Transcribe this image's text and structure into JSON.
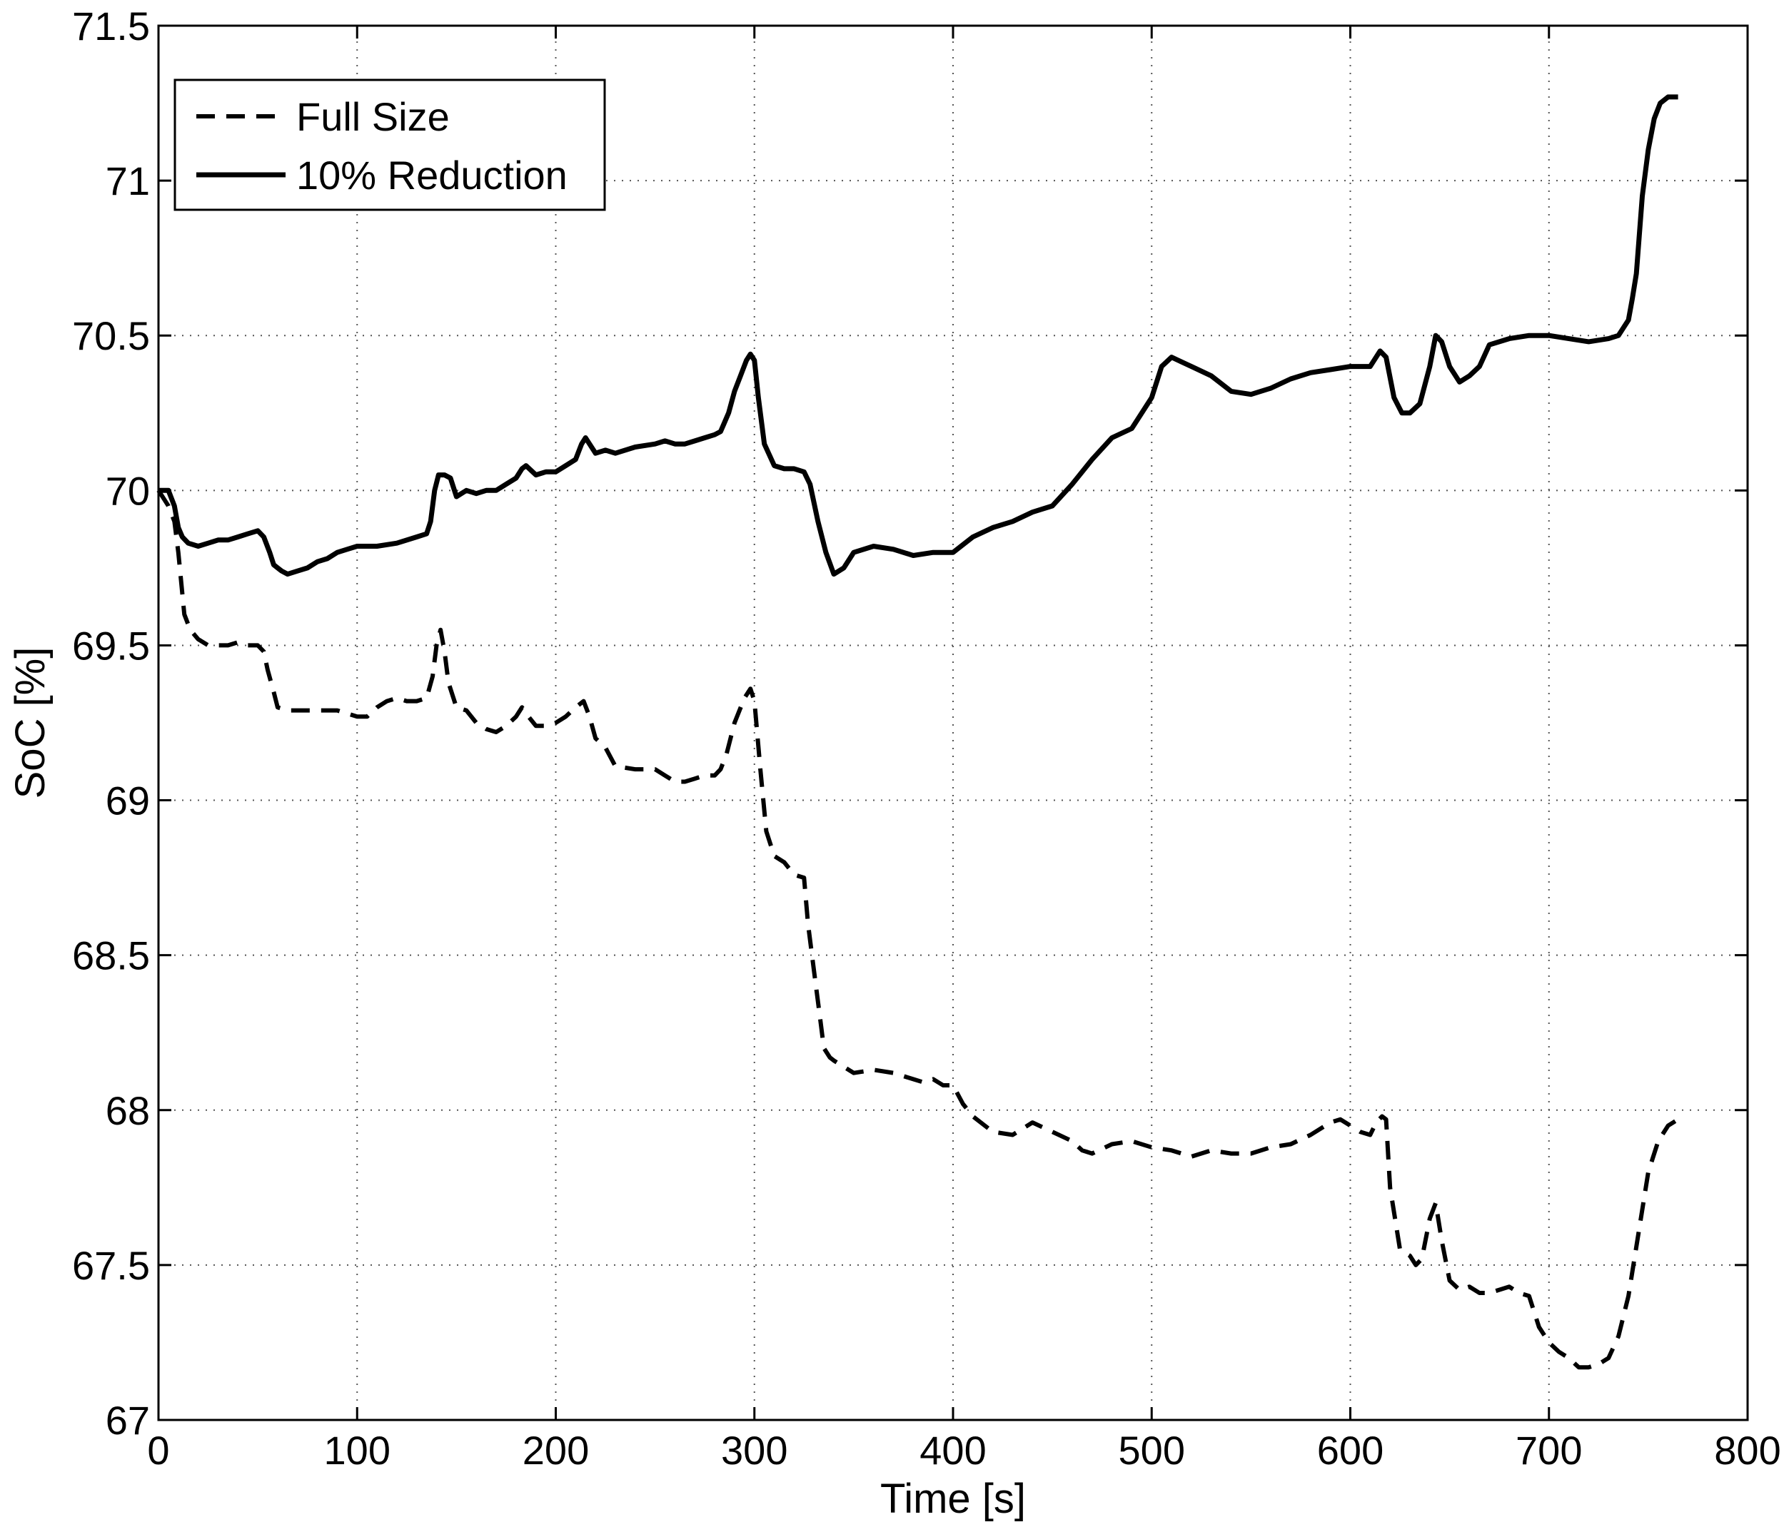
{
  "chart_data": {
    "type": "line",
    "xlabel": "Time [s]",
    "ylabel": "SoC [%]",
    "xlim": [
      0,
      800
    ],
    "ylim": [
      67,
      71.5
    ],
    "xticks": [
      0,
      100,
      200,
      300,
      400,
      500,
      600,
      700,
      800
    ],
    "yticks": [
      67,
      67.5,
      68,
      68.5,
      69,
      69.5,
      70,
      70.5,
      71,
      71.5
    ],
    "xtick_labels": [
      "0",
      "100",
      "200",
      "300",
      "400",
      "500",
      "600",
      "700",
      "800"
    ],
    "ytick_labels": [
      "67",
      "67.5",
      "68",
      "68.5",
      "69",
      "69.5",
      "70",
      "70.5",
      "71",
      "71.5"
    ],
    "grid": true,
    "legend_position": "top-left",
    "series": [
      {
        "name": "Full Size",
        "style": "dashed",
        "color": "#000000",
        "x": [
          0,
          5,
          8,
          10,
          13,
          16,
          20,
          25,
          30,
          35,
          40,
          45,
          50,
          53,
          55,
          58,
          60,
          65,
          70,
          80,
          90,
          100,
          105,
          110,
          115,
          120,
          125,
          130,
          135,
          138,
          140,
          142,
          144,
          146,
          150,
          155,
          160,
          165,
          170,
          175,
          180,
          183,
          185,
          190,
          195,
          200,
          205,
          210,
          214,
          217,
          220,
          225,
          230,
          240,
          250,
          255,
          260,
          265,
          270,
          275,
          280,
          283,
          286,
          290,
          295,
          298,
          300,
          303,
          306,
          310,
          315,
          320,
          325,
          327,
          330,
          333,
          335,
          338,
          340,
          345,
          350,
          360,
          370,
          380,
          385,
          390,
          395,
          400,
          405,
          410,
          420,
          430,
          440,
          450,
          460,
          465,
          470,
          480,
          490,
          500,
          510,
          520,
          530,
          540,
          550,
          560,
          570,
          580,
          590,
          595,
          600,
          605,
          610,
          613,
          616,
          618,
          620,
          625,
          630,
          633,
          636,
          640,
          643,
          646,
          650,
          655,
          660,
          665,
          670,
          675,
          680,
          685,
          690,
          695,
          700,
          705,
          710,
          715,
          720,
          725,
          730,
          735,
          740,
          745,
          750,
          755,
          760,
          765
        ],
        "y": [
          70.0,
          69.95,
          69.9,
          69.8,
          69.6,
          69.55,
          69.52,
          69.5,
          69.5,
          69.5,
          69.51,
          69.5,
          69.5,
          69.48,
          69.42,
          69.35,
          69.3,
          69.29,
          69.29,
          69.29,
          69.29,
          69.27,
          69.27,
          69.3,
          69.32,
          69.33,
          69.32,
          69.32,
          69.33,
          69.4,
          69.5,
          69.55,
          69.48,
          69.38,
          69.3,
          69.29,
          69.25,
          69.23,
          69.22,
          69.24,
          69.27,
          69.3,
          69.28,
          69.24,
          69.24,
          69.25,
          69.27,
          69.3,
          69.32,
          69.27,
          69.2,
          69.17,
          69.11,
          69.1,
          69.1,
          69.08,
          69.06,
          69.06,
          69.07,
          69.08,
          69.08,
          69.1,
          69.15,
          69.25,
          69.33,
          69.36,
          69.32,
          69.1,
          68.9,
          68.82,
          68.8,
          68.76,
          68.75,
          68.6,
          68.45,
          68.3,
          68.2,
          68.17,
          68.16,
          68.14,
          68.12,
          68.13,
          68.12,
          68.1,
          68.09,
          68.1,
          68.08,
          68.08,
          68.02,
          67.98,
          67.93,
          67.92,
          67.96,
          67.93,
          67.9,
          67.87,
          67.86,
          67.89,
          67.9,
          67.88,
          67.87,
          67.85,
          67.87,
          67.86,
          67.86,
          67.88,
          67.89,
          67.92,
          67.96,
          67.97,
          67.95,
          67.93,
          67.92,
          67.96,
          67.98,
          67.97,
          67.75,
          67.55,
          67.53,
          67.5,
          67.52,
          67.65,
          67.7,
          67.58,
          67.45,
          67.42,
          67.43,
          67.41,
          67.41,
          67.42,
          67.43,
          67.41,
          67.4,
          67.3,
          67.25,
          67.22,
          67.2,
          67.17,
          67.17,
          67.18,
          67.2,
          67.27,
          67.4,
          67.6,
          67.8,
          67.9,
          67.95,
          67.97
        ]
      },
      {
        "name": "10% Reduction",
        "style": "solid",
        "color": "#000000",
        "x": [
          0,
          5,
          8,
          10,
          12,
          15,
          20,
          25,
          30,
          35,
          40,
          45,
          50,
          53,
          56,
          58,
          60,
          62,
          65,
          70,
          75,
          80,
          85,
          90,
          95,
          100,
          110,
          120,
          130,
          135,
          137,
          139,
          141,
          144,
          147,
          150,
          155,
          160,
          165,
          170,
          175,
          180,
          183,
          185,
          190,
          195,
          200,
          205,
          210,
          213,
          215,
          218,
          220,
          225,
          230,
          240,
          250,
          255,
          260,
          265,
          270,
          275,
          280,
          283,
          287,
          290,
          293,
          296,
          298,
          300,
          302,
          305,
          310,
          315,
          320,
          325,
          328,
          332,
          336,
          340,
          345,
          350,
          360,
          370,
          380,
          390,
          400,
          410,
          420,
          430,
          440,
          450,
          460,
          470,
          480,
          490,
          500,
          505,
          510,
          520,
          530,
          540,
          550,
          560,
          570,
          580,
          590,
          600,
          610,
          615,
          618,
          622,
          626,
          630,
          635,
          640,
          643,
          646,
          650,
          655,
          660,
          665,
          670,
          680,
          690,
          700,
          710,
          720,
          730,
          735,
          740,
          742,
          744,
          747,
          750,
          753,
          756,
          760,
          765
        ],
        "y": [
          70.0,
          70.0,
          69.95,
          69.88,
          69.85,
          69.83,
          69.82,
          69.83,
          69.84,
          69.84,
          69.85,
          69.86,
          69.87,
          69.85,
          69.8,
          69.76,
          69.75,
          69.74,
          69.73,
          69.74,
          69.75,
          69.77,
          69.78,
          69.8,
          69.81,
          69.82,
          69.82,
          69.83,
          69.85,
          69.86,
          69.9,
          70.0,
          70.05,
          70.05,
          70.04,
          69.98,
          70.0,
          69.99,
          70.0,
          70.0,
          70.02,
          70.04,
          70.07,
          70.08,
          70.05,
          70.06,
          70.06,
          70.08,
          70.1,
          70.15,
          70.17,
          70.14,
          70.12,
          70.13,
          70.12,
          70.14,
          70.15,
          70.16,
          70.15,
          70.15,
          70.16,
          70.17,
          70.18,
          70.19,
          70.25,
          70.32,
          70.37,
          70.42,
          70.44,
          70.42,
          70.3,
          70.15,
          70.08,
          70.07,
          70.07,
          70.06,
          70.02,
          69.9,
          69.8,
          69.73,
          69.75,
          69.8,
          69.82,
          69.81,
          69.79,
          69.8,
          69.8,
          69.85,
          69.88,
          69.9,
          69.93,
          69.95,
          70.02,
          70.1,
          70.17,
          70.2,
          70.3,
          70.4,
          70.43,
          70.4,
          70.37,
          70.32,
          70.31,
          70.33,
          70.36,
          70.38,
          70.39,
          70.4,
          70.4,
          70.45,
          70.43,
          70.3,
          70.25,
          70.25,
          70.28,
          70.4,
          70.5,
          70.48,
          70.4,
          70.35,
          70.37,
          70.4,
          70.47,
          70.49,
          70.5,
          70.5,
          70.49,
          70.48,
          70.49,
          70.5,
          70.55,
          70.62,
          70.7,
          70.95,
          71.1,
          71.2,
          71.25,
          71.27,
          71.27
        ]
      }
    ]
  }
}
